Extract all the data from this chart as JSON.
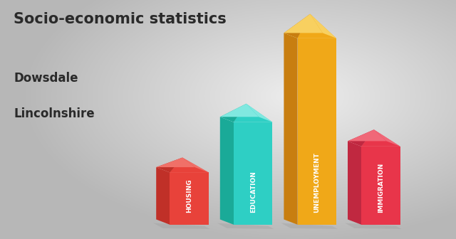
{
  "title_line1": "Socio-economic statistics",
  "title_line2": "Dowsdale",
  "title_line3": "Lincolnshire",
  "categories": [
    "HOUSING",
    "EDUCATION",
    "UNEMPLOYMENT",
    "IMMIGRATION"
  ],
  "values": [
    0.28,
    0.55,
    1.0,
    0.42
  ],
  "bar_colors": [
    "#e8423a",
    "#2ecfc4",
    "#f0a818",
    "#e8354a"
  ],
  "bar_side_colors": [
    "#c03028",
    "#1aaa98",
    "#c87e10",
    "#c02840"
  ],
  "bar_top_colors": [
    "#f07068",
    "#80e8e0",
    "#f8d060",
    "#f06878"
  ],
  "text_color": "#2a2a2a",
  "label_color": "#ffffff",
  "bg_light": "#e8e8e8",
  "bg_dark": "#b8b8b8"
}
